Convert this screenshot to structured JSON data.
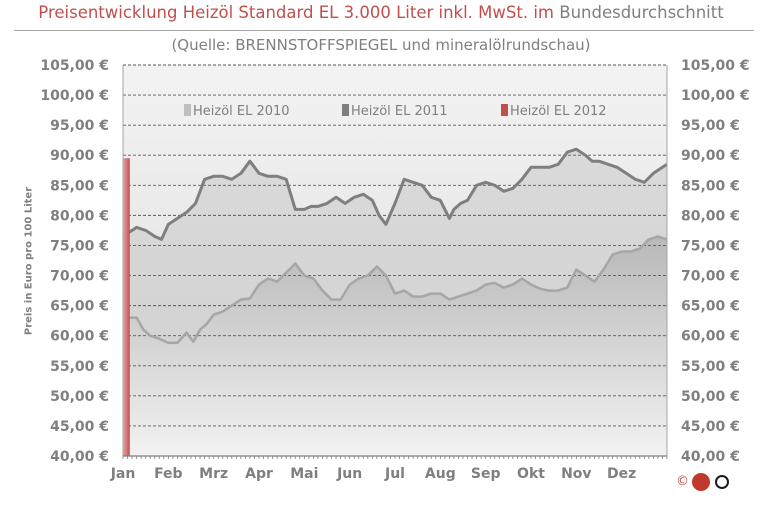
{
  "header": {
    "title_main": "Preisentwicklung Heizöl Standard EL 3.000 Liter inkl. MwSt. im",
    "title_suffix": "Bundesdurchschnitt",
    "subtitle": "(Quelle: BRENNSTOFFSPIEGEL  und mineralölrundschau)"
  },
  "logo": {
    "copyright": "©",
    "icon": "ceto-logo"
  },
  "colors": {
    "title_red": "#c0504d",
    "series_2010": "#bfbfbf",
    "series_2011": "#7f7f7f",
    "series_2012": "#c0504d"
  },
  "chart_data": {
    "type": "area",
    "title": "Preisentwicklung Heizöl Standard EL 3.000 Liter inkl. MwSt. im Bundesdurchschnitt",
    "subtitle": "(Quelle: BRENNSTOFFSPIEGEL  und mineralölrundschau)",
    "xlabel": "",
    "ylabel": "Preis in Euro pro 100 Liter",
    "ylim": [
      40,
      105
    ],
    "ytick_step": 5,
    "ytick_labels": [
      "40,00 €",
      "45,00 €",
      "50,00 €",
      "55,00 €",
      "60,00 €",
      "65,00 €",
      "70,00 €",
      "75,00 €",
      "80,00 €",
      "85,00 €",
      "90,00 €",
      "95,00 €",
      "100,00 €",
      "105,00 €"
    ],
    "categories": [
      "Jan",
      "Feb",
      "Mrz",
      "Apr",
      "Mai",
      "Jun",
      "Jul",
      "Aug",
      "Sep",
      "Okt",
      "Nov",
      "Dez"
    ],
    "x_unit": "month (0 = Jan start, 12 = Dec end)",
    "xlim": [
      0,
      12
    ],
    "grid": "horizontal dashed",
    "legend_position": "top, inside plot",
    "series": [
      {
        "name": "Heizöl EL 2010",
        "color": "#bfbfbf",
        "x": [
          0,
          0.1,
          0.3,
          0.45,
          0.6,
          0.8,
          1.0,
          1.2,
          1.4,
          1.55,
          1.7,
          1.85,
          2.0,
          2.2,
          2.4,
          2.6,
          2.8,
          3.0,
          3.2,
          3.4,
          3.6,
          3.8,
          4.0,
          4.2,
          4.4,
          4.6,
          4.8,
          5.0,
          5.2,
          5.4,
          5.6,
          5.8,
          6.0,
          6.2,
          6.4,
          6.6,
          6.8,
          7.0,
          7.2,
          7.4,
          7.6,
          7.8,
          8.0,
          8.2,
          8.4,
          8.6,
          8.8,
          9.0,
          9.2,
          9.4,
          9.6,
          9.8,
          10.0,
          10.2,
          10.4,
          10.6,
          10.8,
          11.0,
          11.2,
          11.4,
          11.6,
          11.8,
          12.0
        ],
        "values": [
          62.5,
          63,
          63,
          61,
          60,
          59.5,
          58.8,
          58.8,
          60.5,
          59,
          61,
          62,
          63.5,
          64,
          65,
          66,
          66.2,
          68.5,
          69.5,
          69,
          70.5,
          72,
          70,
          69.5,
          67.5,
          66,
          66,
          68.5,
          69.5,
          70,
          71.5,
          70,
          67,
          67.5,
          66.5,
          66.5,
          67,
          67,
          66,
          66.5,
          67,
          67.5,
          68.5,
          68.8,
          68,
          68.5,
          69.5,
          68.5,
          67.8,
          67.5,
          67.5,
          68,
          71,
          70,
          69,
          71,
          73.5,
          74,
          74,
          74.5,
          76,
          76.5,
          76
        ]
      },
      {
        "name": "Heizöl EL 2011",
        "color": "#7f7f7f",
        "x": [
          0,
          0.1,
          0.3,
          0.5,
          0.7,
          0.85,
          1.0,
          1.2,
          1.4,
          1.6,
          1.8,
          2.0,
          2.2,
          2.4,
          2.6,
          2.8,
          3.0,
          3.2,
          3.4,
          3.6,
          3.8,
          4.0,
          4.15,
          4.3,
          4.5,
          4.7,
          4.9,
          5.1,
          5.3,
          5.5,
          5.65,
          5.8,
          6.0,
          6.2,
          6.4,
          6.6,
          6.8,
          7.0,
          7.2,
          7.3,
          7.45,
          7.6,
          7.8,
          8.0,
          8.2,
          8.4,
          8.6,
          8.8,
          9.0,
          9.2,
          9.4,
          9.6,
          9.8,
          10.0,
          10.2,
          10.35,
          10.5,
          10.7,
          10.9,
          11.1,
          11.3,
          11.5,
          11.7,
          11.9,
          12.0
        ],
        "values": [
          76.5,
          77,
          78,
          77.5,
          76.5,
          76,
          78.5,
          79.5,
          80.5,
          82,
          86,
          86.5,
          86.5,
          86,
          87,
          89,
          87,
          86.5,
          86.5,
          86,
          81,
          81,
          81.5,
          81.5,
          82,
          83,
          82,
          83,
          83.5,
          82.5,
          80,
          78.5,
          82,
          86,
          85.5,
          85,
          83,
          82.5,
          79.5,
          81,
          82,
          82.5,
          85,
          85.5,
          85,
          84,
          84.5,
          86,
          88,
          88,
          88,
          88.5,
          90.5,
          91,
          90,
          89,
          89,
          88.5,
          88,
          87,
          86,
          85.5,
          87,
          88,
          88.5
        ]
      },
      {
        "name": "Heizöl EL 2012",
        "color": "#c0504d",
        "x": [
          0.0,
          0.05,
          0.1,
          0.15
        ],
        "values": [
          77,
          89,
          89.5,
          89.5
        ]
      }
    ]
  }
}
